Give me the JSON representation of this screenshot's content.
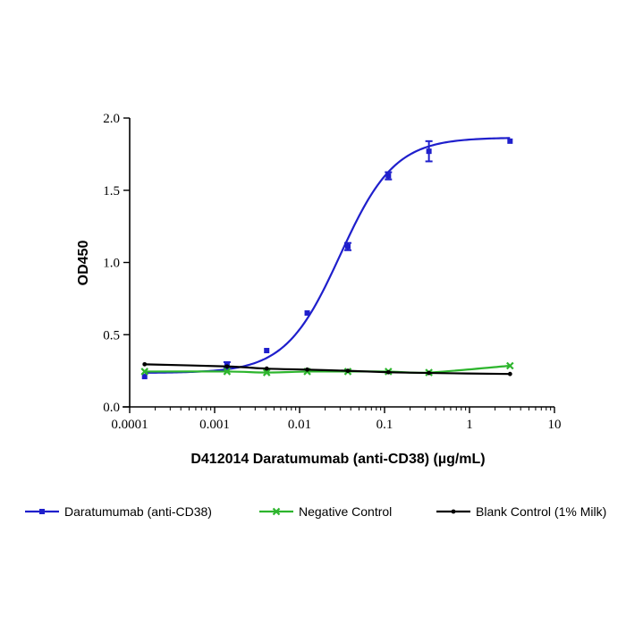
{
  "chart_data": {
    "type": "line",
    "title": "",
    "xlabel": "D412014 Daratumumab (anti-CD38) (µg/mL)",
    "ylabel": "OD450",
    "xscale": "log",
    "xlim": [
      0.0001,
      10
    ],
    "ylim": [
      0.0,
      2.0
    ],
    "xticks": [
      0.0001,
      0.001,
      0.01,
      0.1,
      1,
      10
    ],
    "xtick_labels": [
      "0.0001",
      "0.001",
      "0.01",
      "0.1",
      "1",
      "10"
    ],
    "yticks": [
      0.0,
      0.5,
      1.0,
      1.5,
      2.0
    ],
    "ytick_labels": [
      "0.0",
      "0.5",
      "1.0",
      "1.5",
      "2.0"
    ],
    "grid": false,
    "legend_position": "bottom",
    "series": [
      {
        "name": "Daratumumab (anti-CD38)",
        "color": "#1f1fcc",
        "marker": "square",
        "fit": {
          "bottom": 0.235,
          "top": 1.865,
          "ec50": 0.03,
          "hill": 1.35
        },
        "points": [
          {
            "x": 0.00015,
            "y": 0.21
          },
          {
            "x": 0.0014,
            "y": 0.29,
            "err": 0.02
          },
          {
            "x": 0.0041,
            "y": 0.39
          },
          {
            "x": 0.0123,
            "y": 0.65
          },
          {
            "x": 0.037,
            "y": 1.11,
            "err": 0.025
          },
          {
            "x": 0.111,
            "y": 1.6,
            "err": 0.025
          },
          {
            "x": 0.333,
            "y": 1.77,
            "err": 0.07
          },
          {
            "x": 3.0,
            "y": 1.84
          }
        ]
      },
      {
        "name": "Negative Control",
        "color": "#2db52d",
        "marker": "x",
        "points": [
          {
            "x": 0.00015,
            "y": 0.245
          },
          {
            "x": 0.0014,
            "y": 0.245
          },
          {
            "x": 0.0041,
            "y": 0.238
          },
          {
            "x": 0.0123,
            "y": 0.245
          },
          {
            "x": 0.037,
            "y": 0.245
          },
          {
            "x": 0.111,
            "y": 0.245
          },
          {
            "x": 0.333,
            "y": 0.238
          },
          {
            "x": 3.0,
            "y": 0.285
          }
        ]
      },
      {
        "name": "Blank Control (1% Milk)",
        "color": "#000000",
        "marker": "dot",
        "points": [
          {
            "x": 0.00015,
            "y": 0.295
          },
          {
            "x": 0.0014,
            "y": 0.28
          },
          {
            "x": 0.0041,
            "y": 0.265
          },
          {
            "x": 0.0123,
            "y": 0.258
          },
          {
            "x": 0.037,
            "y": 0.25
          },
          {
            "x": 0.111,
            "y": 0.24
          },
          {
            "x": 0.333,
            "y": 0.235
          },
          {
            "x": 3.0,
            "y": 0.228
          }
        ]
      }
    ]
  }
}
